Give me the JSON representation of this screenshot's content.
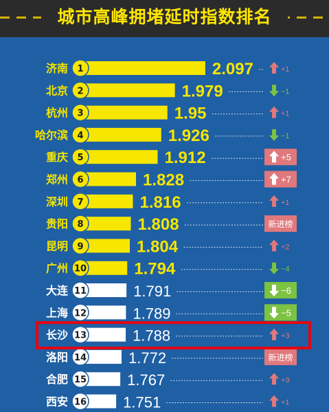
{
  "title": "城市高峰拥堵延时指数排名",
  "colors": {
    "background": "#1f5fa3",
    "top_bar": "#f6e600",
    "other_bar": "#ffffff",
    "up": "#e0787c",
    "down": "#7cc243",
    "highlight": "#e30613"
  },
  "chart_data": {
    "type": "bar",
    "orientation": "horizontal",
    "title": "城市高峰拥堵延时指数排名",
    "categories": [
      "济南",
      "北京",
      "杭州",
      "哈尔滨",
      "重庆",
      "郑州",
      "深圳",
      "贵阳",
      "昆明",
      "广州",
      "大连",
      "上海",
      "长沙",
      "洛阳",
      "合肥",
      "西安"
    ],
    "ranks": [
      "1",
      "2",
      "3",
      "4",
      "5",
      "6",
      "7",
      "8",
      "9",
      "10",
      "11",
      "12",
      "13",
      "14",
      "15",
      "16"
    ],
    "values": [
      2.097,
      1.979,
      1.95,
      1.926,
      1.912,
      1.828,
      1.816,
      1.808,
      1.804,
      1.794,
      1.791,
      1.789,
      1.788,
      1.772,
      1.767,
      1.751
    ],
    "value_labels": [
      "2.097",
      "1.979",
      "1.95",
      "1.926",
      "1.912",
      "1.828",
      "1.816",
      "1.808",
      "1.804",
      "1.794",
      "1.791",
      "1.789",
      "1.788",
      "1.772",
      "1.767",
      "1.751"
    ],
    "changes": [
      {
        "dir": "up",
        "label": "+1",
        "boxed": false
      },
      {
        "dir": "down",
        "label": "−1",
        "boxed": false
      },
      {
        "dir": "up",
        "label": "+1",
        "boxed": false
      },
      {
        "dir": "down",
        "label": "−1",
        "boxed": false
      },
      {
        "dir": "up",
        "label": "+5",
        "boxed": true
      },
      {
        "dir": "up",
        "label": "+7",
        "boxed": true
      },
      {
        "dir": "up",
        "label": "+1",
        "boxed": false
      },
      {
        "dir": "new",
        "label": "新进榜",
        "boxed": true
      },
      {
        "dir": "up",
        "label": "+2",
        "boxed": false
      },
      {
        "dir": "down",
        "label": "−4",
        "boxed": false
      },
      {
        "dir": "down",
        "label": "−6",
        "boxed": true
      },
      {
        "dir": "down",
        "label": "−5",
        "boxed": true
      },
      {
        "dir": "up",
        "label": "+3",
        "boxed": false
      },
      {
        "dir": "new",
        "label": "新进榜",
        "boxed": true
      },
      {
        "dir": "up",
        "label": "+3",
        "boxed": false
      },
      {
        "dir": "up",
        "label": "+1",
        "boxed": false
      }
    ],
    "top_group_size": 10,
    "highlighted_category": "长沙"
  }
}
